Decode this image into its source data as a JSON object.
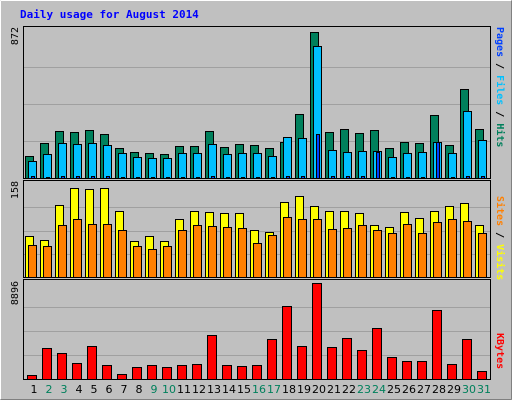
{
  "title": "Daily usage for August 2014",
  "colors": {
    "background": "#c0c0c0",
    "title": "#0000ff",
    "hits": "#00805c",
    "files": "#00c0ff",
    "pages": "#0040ff",
    "visits": "#ffff00",
    "sites": "#ff8000",
    "kbytes": "#ff0000",
    "weekend_label": "#00805c",
    "weekday_label": "#000000"
  },
  "chart_data": [
    {
      "type": "bar",
      "panel": "hits-files-pages",
      "max_label": "872",
      "ylim": [
        0,
        872
      ],
      "categories": [
        "1",
        "2",
        "3",
        "4",
        "5",
        "6",
        "7",
        "8",
        "9",
        "10",
        "11",
        "12",
        "13",
        "14",
        "15",
        "16",
        "17",
        "18",
        "19",
        "20",
        "21",
        "22",
        "23",
        "24",
        "25",
        "26",
        "27",
        "28",
        "29",
        "30",
        "31"
      ],
      "series": [
        {
          "name": "Hits",
          "label_text": "Hits",
          "values": [
            130,
            205,
            275,
            270,
            285,
            260,
            175,
            155,
            150,
            140,
            190,
            190,
            275,
            185,
            200,
            195,
            175,
            215,
            375,
            860,
            270,
            290,
            265,
            285,
            175,
            210,
            205,
            370,
            195,
            525,
            290
          ]
        },
        {
          "name": "Files",
          "label_text": "Files",
          "values": [
            100,
            140,
            205,
            200,
            205,
            195,
            150,
            125,
            120,
            115,
            145,
            150,
            200,
            140,
            150,
            150,
            130,
            240,
            235,
            780,
            165,
            155,
            160,
            160,
            125,
            150,
            155,
            215,
            145,
            395,
            225
          ]
        },
        {
          "name": "Pages",
          "label_text": "Pages",
          "values": [
            10,
            8,
            14,
            12,
            12,
            10,
            6,
            5,
            5,
            4,
            8,
            7,
            12,
            6,
            8,
            7,
            6,
            10,
            14,
            260,
            10,
            10,
            10,
            155,
            6,
            8,
            8,
            210,
            8,
            14,
            12
          ]
        }
      ]
    },
    {
      "type": "bar",
      "panel": "visits-sites",
      "max_label": "158",
      "ylim": [
        0,
        158
      ],
      "categories": [
        "1",
        "2",
        "3",
        "4",
        "5",
        "6",
        "7",
        "8",
        "9",
        "10",
        "11",
        "12",
        "13",
        "14",
        "15",
        "16",
        "17",
        "18",
        "19",
        "20",
        "21",
        "22",
        "23",
        "24",
        "25",
        "26",
        "27",
        "28",
        "29",
        "30",
        "31"
      ],
      "series": [
        {
          "name": "Visits",
          "label_text": "Visits",
          "values": [
            70,
            63,
            122,
            152,
            150,
            152,
            112,
            62,
            70,
            62,
            98,
            112,
            110,
            108,
            108,
            80,
            76,
            128,
            138,
            120,
            112,
            112,
            108,
            88,
            85,
            110,
            100,
            112,
            120,
            125,
            88
          ]
        },
        {
          "name": "Sites",
          "label_text": "Sites",
          "values": [
            55,
            53,
            88,
            99,
            90,
            90,
            80,
            52,
            48,
            52,
            80,
            88,
            86,
            85,
            84,
            58,
            72,
            102,
            99,
            99,
            82,
            84,
            88,
            80,
            75,
            90,
            75,
            93,
            99,
            95,
            75
          ]
        }
      ]
    },
    {
      "type": "bar",
      "panel": "kbytes",
      "max_label": "8896",
      "ylim": [
        0,
        8896
      ],
      "categories": [
        "1",
        "2",
        "3",
        "4",
        "5",
        "6",
        "7",
        "8",
        "9",
        "10",
        "11",
        "12",
        "13",
        "14",
        "15",
        "16",
        "17",
        "18",
        "19",
        "20",
        "21",
        "22",
        "23",
        "24",
        "25",
        "26",
        "27",
        "28",
        "29",
        "30",
        "31"
      ],
      "series": [
        {
          "name": "KBytes",
          "label_text": "KBytes",
          "values": [
            400,
            2900,
            2400,
            1500,
            3100,
            1300,
            500,
            1100,
            1300,
            1100,
            1300,
            1400,
            4100,
            1300,
            1200,
            1300,
            3700,
            6800,
            3100,
            8896,
            3000,
            3800,
            2700,
            4700,
            2000,
            1700,
            1700,
            6400,
            1400,
            3700,
            700
          ]
        }
      ]
    }
  ],
  "x_axis": {
    "weekend_days": [
      "2",
      "3",
      "9",
      "10",
      "16",
      "17",
      "23",
      "24",
      "30",
      "31"
    ]
  }
}
